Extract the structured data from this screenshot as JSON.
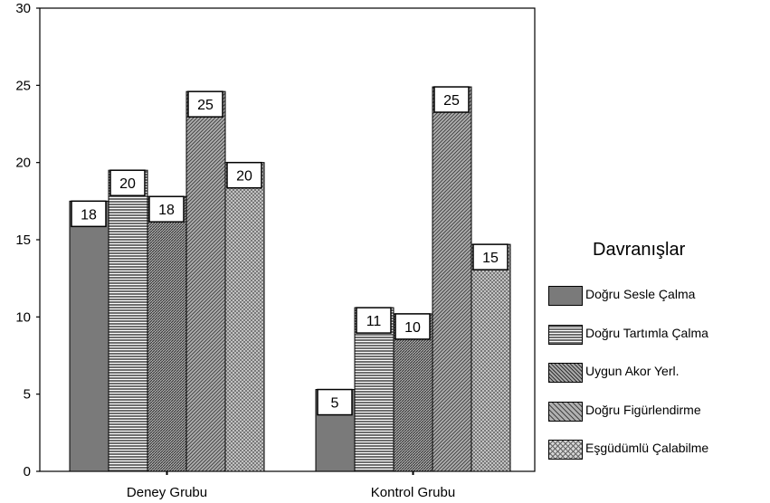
{
  "chart_data": {
    "type": "bar",
    "categories": [
      "Deney Grubu",
      "Kontrol Grubu"
    ],
    "ylim": [
      0,
      30
    ],
    "yticks": [
      0,
      5,
      10,
      15,
      20,
      25,
      30
    ],
    "legend_title": "Davranışlar",
    "legend_position": "right",
    "grid": false,
    "series": [
      {
        "name": "Doğru Sesle Çalma",
        "values": [
          17.5,
          5.3
        ],
        "labels": [
          "18",
          "5"
        ],
        "color": "#7a7a7a",
        "pattern": "solid"
      },
      {
        "name": "Doğru Tartımla Çalma",
        "values": [
          19.5,
          10.6
        ],
        "labels": [
          "20",
          "11"
        ],
        "color": "#8a8a8a",
        "pattern": "horizontal"
      },
      {
        "name": "Uygun Akor Yerl.",
        "values": [
          17.8,
          10.2
        ],
        "labels": [
          "18",
          "10"
        ],
        "color": "#8a8a8a",
        "pattern": "diag-dense"
      },
      {
        "name": "Doğru Figürlendirme",
        "values": [
          24.6,
          24.9
        ],
        "labels": [
          "25",
          "25"
        ],
        "color": "#8a8a8a",
        "pattern": "diag"
      },
      {
        "name": "Eşgüdümlü Çalabilme",
        "values": [
          20.0,
          14.7
        ],
        "labels": [
          "20",
          "15"
        ],
        "color": "#9a9a9a",
        "pattern": "crosshatch"
      }
    ]
  }
}
